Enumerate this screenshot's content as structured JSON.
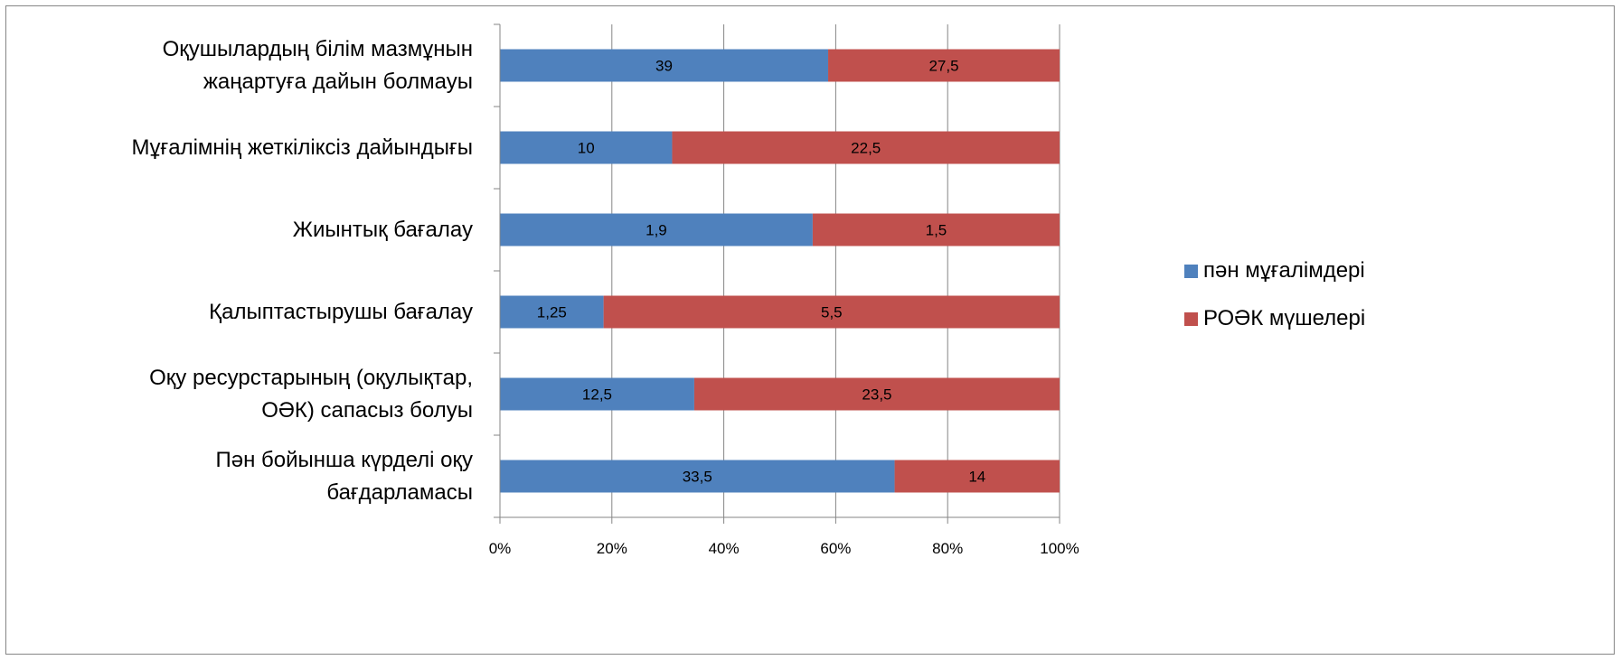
{
  "chart_data": {
    "type": "bar",
    "orientation": "horizontal",
    "stacking": "percent",
    "categories": [
      [
        "Оқушылардың білім мазмұнын",
        "жаңартуға дайын болмауы"
      ],
      [
        "Мұғалімнің жеткіліксіз дайындығы"
      ],
      [
        "Жиынтық бағалау"
      ],
      [
        "Қалыптастырушы бағалау"
      ],
      [
        "Оқу ресурстарының (оқулықтар,",
        "ОӘК) сапасыз болуы"
      ],
      [
        "Пән бойынша күрделі оқу",
        "бағдарламасы"
      ]
    ],
    "series": [
      {
        "name": "пән мұғалімдері",
        "color": "#4f81bd",
        "values": [
          39,
          10,
          1.9,
          1.25,
          12.5,
          33.5
        ],
        "labels": [
          "39",
          "10",
          "1,9",
          "1,25",
          "12,5",
          "33,5"
        ]
      },
      {
        "name": "РОӘК мүшелері",
        "color": "#c0504d",
        "values": [
          27.5,
          22.5,
          1.5,
          5.5,
          23.5,
          14
        ],
        "labels": [
          "27,5",
          "22,5",
          "1,5",
          "5,5",
          "23,5",
          "14"
        ]
      }
    ],
    "x_ticks": [
      "0%",
      "20%",
      "40%",
      "60%",
      "80%",
      "100%"
    ],
    "xlim": [
      0,
      100
    ],
    "grid": true,
    "legend_position": "right",
    "title": "",
    "xlabel": "",
    "ylabel": ""
  }
}
